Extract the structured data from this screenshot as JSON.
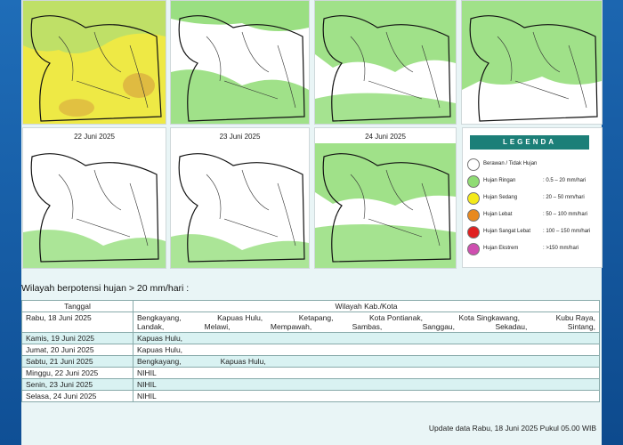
{
  "maps_top": [
    {
      "id": "m1",
      "fill": "#f2ef42",
      "rain": "#d9b53a",
      "land": "#eee945"
    },
    {
      "id": "m2",
      "fill": "#fff",
      "rain": "#8fdc74"
    },
    {
      "id": "m3",
      "fill": "#fff",
      "rain": "#8fdc74"
    },
    {
      "id": "m4",
      "fill": "#fff",
      "rain": "#8fdc74"
    }
  ],
  "maps_bottom": [
    {
      "date": "22 Juni 2025"
    },
    {
      "date": "23 Juni 2025"
    },
    {
      "date": "24 Juni 2025"
    }
  ],
  "legend": {
    "title": "LEGENDA",
    "items": [
      {
        "label": "Berawan / Tidak Hujan",
        "range": "",
        "color": "#ffffff"
      },
      {
        "label": "Hujan Ringan",
        "range": ": 0.5 – 20 mm/hari",
        "color": "#8fdc74"
      },
      {
        "label": "Hujan Sedang",
        "range": ": 20 – 50 mm/hari",
        "color": "#f4ea1a"
      },
      {
        "label": "Hujan Lebat",
        "range": ": 50 – 100 mm/hari",
        "color": "#e8891f"
      },
      {
        "label": "Hujan Sangat Lebat",
        "range": ": 100 – 150 mm/hari",
        "color": "#e02020"
      },
      {
        "label": "Hujan Ekstrem",
        "range": ": >150 mm/hari",
        "color": "#cf4fb0"
      }
    ]
  },
  "section_title": "Wilayah berpotensi hujan > 20 mm/hari :",
  "table": {
    "headers": [
      "Tanggal",
      "Wilayah Kab./Kota"
    ],
    "rows": [
      {
        "date": "Rabu, 18 Juni 2025",
        "lines": [
          [
            "Bengkayang,",
            "Kapuas Hulu,",
            "Ketapang,",
            "Kota Pontianak,",
            "Kota Singkawang,",
            "Kubu Raya,"
          ],
          [
            "Landak,",
            "Melawi,",
            "Mempawah,",
            "Sambas,",
            "Sanggau,",
            "Sekadau,",
            "Sintang,"
          ]
        ]
      },
      {
        "date": "Kamis, 19 Juni 2025",
        "lines": [
          [
            "Kapuas Hulu,"
          ]
        ]
      },
      {
        "date": "Jumat, 20 Juni 2025",
        "lines": [
          [
            "Kapuas Hulu,"
          ]
        ]
      },
      {
        "date": "Sabtu, 21 Juni 2025",
        "lines": [
          [
            "Bengkayang,",
            "Kapuas Hulu,"
          ]
        ]
      },
      {
        "date": "Minggu, 22 Juni 2025",
        "lines": [
          [
            "NIHIL"
          ]
        ]
      },
      {
        "date": "Senin, 23 Juni 2025",
        "lines": [
          [
            "NIHIL"
          ]
        ]
      },
      {
        "date": "Selasa, 24 Juni 2025",
        "lines": [
          [
            "NIHIL"
          ]
        ]
      }
    ]
  },
  "footer": "Update data Rabu, 18 Juni 2025 Pukul 05.00 WIB"
}
